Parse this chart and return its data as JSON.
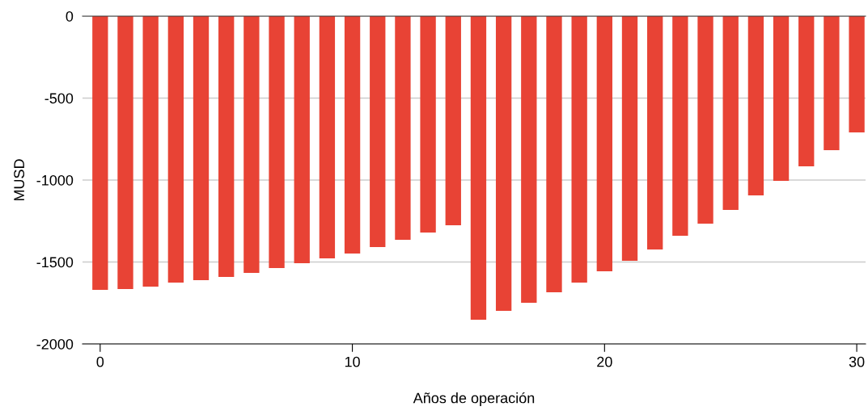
{
  "chart_data": {
    "type": "bar",
    "x": [
      0,
      1,
      2,
      3,
      4,
      5,
      6,
      7,
      8,
      9,
      10,
      11,
      12,
      13,
      14,
      15,
      16,
      17,
      18,
      19,
      20,
      21,
      22,
      23,
      24,
      25,
      26,
      27,
      28,
      29,
      30
    ],
    "values": [
      -1670,
      -1665,
      -1650,
      -1626,
      -1611,
      -1591,
      -1567,
      -1537,
      -1507,
      -1478,
      -1448,
      -1409,
      -1365,
      -1320,
      -1276,
      -1852,
      -1798,
      -1749,
      -1685,
      -1626,
      -1557,
      -1493,
      -1424,
      -1340,
      -1266,
      -1182,
      -1094,
      -1005,
      -916,
      -818,
      -709
    ],
    "color": "#e84335",
    "xlabel": "Años de operación",
    "ylabel": "MUSD",
    "xlim": [
      -0.7,
      30.35
    ],
    "xticks": [
      0,
      10,
      20,
      30
    ],
    "ylim": [
      -2000,
      0
    ],
    "yticks": [
      -2000,
      -1500,
      -1000,
      -500,
      0
    ],
    "grid": "y"
  }
}
